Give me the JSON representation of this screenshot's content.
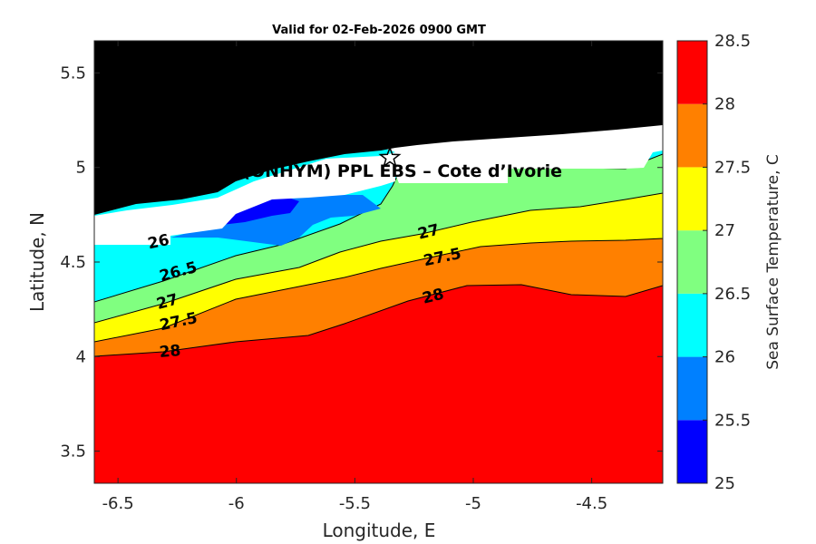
{
  "chart_data": {
    "type": "heatmap",
    "subtype": "filled-contour",
    "title": "Valid for 02-Feb-2026 0900 GMT",
    "xlabel": "Longitude, E",
    "ylabel": "Latitude, N",
    "xlim": [
      -6.6,
      -4.2
    ],
    "ylim": [
      3.33,
      5.67
    ],
    "xticks": [
      -6.5,
      -6,
      -5.5,
      -5,
      -4.5
    ],
    "xtick_labels": [
      "-6.5",
      "-6",
      "-5.5",
      "-5",
      "-4.5"
    ],
    "yticks": [
      3.5,
      4,
      4.5,
      5,
      5.5
    ],
    "ytick_labels": [
      "3.5",
      "4",
      "4.5",
      "5",
      "5.5"
    ],
    "land_color": "#000000",
    "colorbar": {
      "label": "Sea Surface Temperature, C",
      "range": [
        25,
        28.5
      ],
      "ticks": [
        "25",
        "25.5",
        "26",
        "26.5",
        "27",
        "27.5",
        "28",
        "28.5"
      ],
      "levels": [
        {
          "from": 25.0,
          "to": 25.5,
          "color": "#0000ff"
        },
        {
          "from": 25.5,
          "to": 26.0,
          "color": "#0080ff"
        },
        {
          "from": 26.0,
          "to": 26.5,
          "color": "#00ffff"
        },
        {
          "from": 26.5,
          "to": 27.0,
          "color": "#80ff80"
        },
        {
          "from": 27.0,
          "to": 27.5,
          "color": "#ffff00"
        },
        {
          "from": 27.5,
          "to": 28.0,
          "color": "#ff8000"
        },
        {
          "from": 28.0,
          "to": 28.5,
          "color": "#ff0000"
        }
      ]
    },
    "contour_lines": [
      {
        "level": 28,
        "points": [
          [
            -6.6,
            4.01
          ],
          [
            -6.3,
            4.03
          ],
          [
            -6.0,
            4.08
          ],
          [
            -5.7,
            4.1
          ],
          [
            -5.55,
            4.18
          ],
          [
            -5.35,
            4.25
          ],
          [
            -5.15,
            4.31
          ],
          [
            -4.95,
            4.38
          ],
          [
            -4.75,
            4.37
          ],
          [
            -4.55,
            4.32
          ],
          [
            -4.35,
            4.32
          ],
          [
            -4.2,
            4.37
          ]
        ]
      },
      {
        "level": 27.5,
        "points": [
          [
            -6.6,
            4.08
          ],
          [
            -6.3,
            4.13
          ],
          [
            -6.0,
            4.24
          ],
          [
            -5.75,
            4.31
          ],
          [
            -5.55,
            4.38
          ],
          [
            -5.35,
            4.46
          ],
          [
            -5.15,
            4.51
          ],
          [
            -4.95,
            4.56
          ],
          [
            -4.75,
            4.59
          ],
          [
            -4.55,
            4.61
          ],
          [
            -4.35,
            4.6
          ],
          [
            -4.2,
            4.63
          ]
        ]
      },
      {
        "level": 27,
        "points": [
          [
            -6.6,
            4.17
          ],
          [
            -6.3,
            4.26
          ],
          [
            -6.0,
            4.36
          ],
          [
            -5.75,
            4.41
          ],
          [
            -5.55,
            4.49
          ],
          [
            -5.35,
            4.57
          ],
          [
            -5.15,
            4.63
          ],
          [
            -4.95,
            4.7
          ],
          [
            -4.75,
            4.74
          ],
          [
            -4.55,
            4.8
          ],
          [
            -4.35,
            4.85
          ],
          [
            -4.2,
            4.88
          ]
        ]
      },
      {
        "level": 26.5,
        "points": [
          [
            -6.6,
            4.28
          ],
          [
            -6.3,
            4.38
          ],
          [
            -6.0,
            4.47
          ],
          [
            -5.75,
            4.53
          ],
          [
            -5.55,
            4.64
          ],
          [
            -5.4,
            4.73
          ],
          [
            -5.35,
            4.85
          ],
          [
            -5.15,
            4.84
          ],
          [
            -4.95,
            4.82
          ],
          [
            -4.75,
            4.97
          ],
          [
            -4.55,
            5.05
          ],
          [
            -4.35,
            5.0
          ],
          [
            -4.2,
            4.98
          ]
        ]
      },
      {
        "level": 26,
        "points": [
          [
            -6.6,
            4.58
          ],
          [
            -6.4,
            4.6
          ],
          [
            -6.3,
            4.63
          ],
          [
            -6.1,
            4.63
          ],
          [
            -5.95,
            4.57
          ],
          [
            -5.8,
            4.56
          ],
          [
            -5.65,
            4.68
          ],
          [
            -5.45,
            4.7
          ]
        ]
      },
      {
        "level": 25.5,
        "points": [
          [
            -6.1,
            4.67
          ],
          [
            -5.95,
            4.68
          ],
          [
            -5.8,
            4.67
          ],
          [
            -5.7,
            4.77
          ]
        ]
      }
    ],
    "contour_labels": [
      "26",
      "26.5",
      "27",
      "27.5",
      "28",
      "27",
      "27.5",
      "28"
    ],
    "annotation": {
      "text": "A (ONHYM) PPL EBS  – Cote d’Ivorie",
      "marker": "star",
      "lon": -5.35,
      "lat": 5.05
    }
  }
}
